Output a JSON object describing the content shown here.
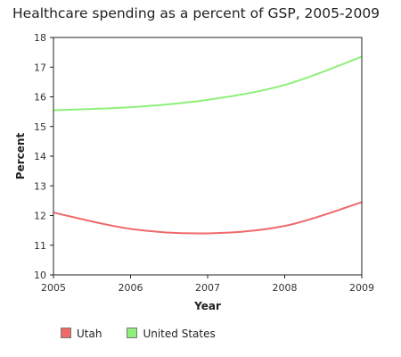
{
  "chart_data": {
    "type": "line",
    "title": "Healthcare spending as a percent of GSP, 2005-2009",
    "xlabel": "Year",
    "ylabel": "Percent",
    "x": [
      2005,
      2006,
      2007,
      2008,
      2009
    ],
    "xlim": [
      2005,
      2009
    ],
    "ylim": [
      10,
      18
    ],
    "yticks": [
      10,
      11,
      12,
      13,
      14,
      15,
      16,
      17,
      18
    ],
    "grid": false,
    "legend_position": "bottom-left",
    "series": [
      {
        "name": "Utah",
        "color": "#f06a6a",
        "values": [
          12.1,
          11.55,
          11.4,
          11.65,
          12.45
        ]
      },
      {
        "name": "United States",
        "color": "#8ef07a",
        "values": [
          15.55,
          15.65,
          15.9,
          16.4,
          17.35
        ]
      }
    ]
  }
}
